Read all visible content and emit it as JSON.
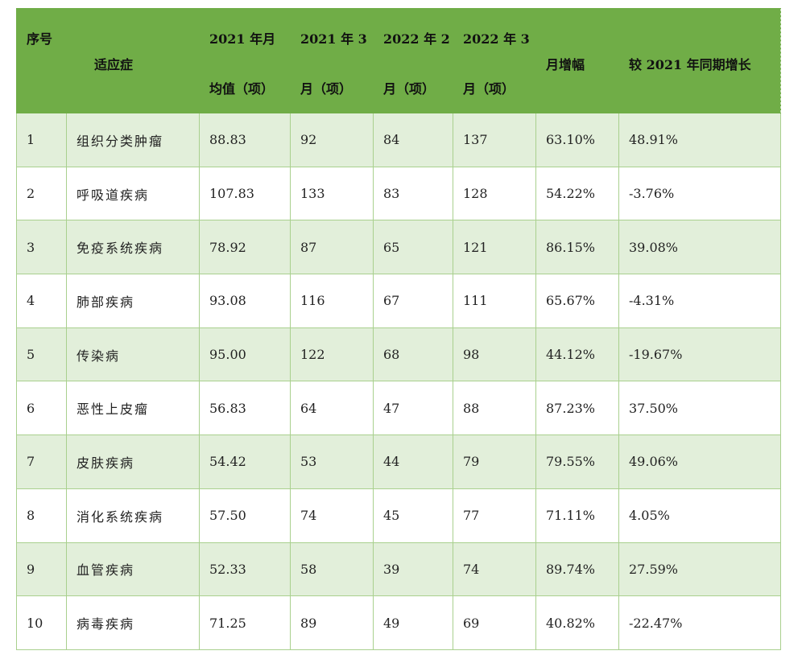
{
  "colors": {
    "header": "#70ad47",
    "row_alt": "#e2efda",
    "border": "#a9d08e"
  },
  "headers": [
    {
      "l1": "序号",
      "l2": ""
    },
    {
      "l1": "适应症",
      "l2": ""
    },
    {
      "l1": "2021 年月",
      "l2": "均值（项）"
    },
    {
      "l1": "2021 年 3",
      "l2": "月（项）"
    },
    {
      "l1": "2022 年 2",
      "l2": "月（项）"
    },
    {
      "l1": "2022 年 3",
      "l2": "月（项）"
    },
    {
      "l1": "月增幅",
      "l2": ""
    },
    {
      "l1": "较 2021 年同期增长",
      "l2": ""
    }
  ],
  "rows": [
    [
      "1",
      "组织分类肿瘤",
      "88.83",
      "92",
      "84",
      "137",
      "63.10%",
      "48.91%"
    ],
    [
      "2",
      "呼吸道疾病",
      "107.83",
      "133",
      "83",
      "128",
      "54.22%",
      "-3.76%"
    ],
    [
      "3",
      "免疫系统疾病",
      "78.92",
      "87",
      "65",
      "121",
      "86.15%",
      "39.08%"
    ],
    [
      "4",
      "肺部疾病",
      "93.08",
      "116",
      "67",
      "111",
      "65.67%",
      "-4.31%"
    ],
    [
      "5",
      "传染病",
      "95.00",
      "122",
      "68",
      "98",
      "44.12%",
      "-19.67%"
    ],
    [
      "6",
      "恶性上皮瘤",
      "56.83",
      "64",
      "47",
      "88",
      "87.23%",
      "37.50%"
    ],
    [
      "7",
      "皮肤疾病",
      "54.42",
      "53",
      "44",
      "79",
      "79.55%",
      "49.06%"
    ],
    [
      "8",
      "消化系统疾病",
      "57.50",
      "74",
      "45",
      "77",
      "71.11%",
      "4.05%"
    ],
    [
      "9",
      "血管疾病",
      "52.33",
      "58",
      "39",
      "74",
      "89.74%",
      "27.59%"
    ],
    [
      "10",
      "病毒疾病",
      "71.25",
      "89",
      "49",
      "69",
      "40.82%",
      "-22.47%"
    ]
  ]
}
